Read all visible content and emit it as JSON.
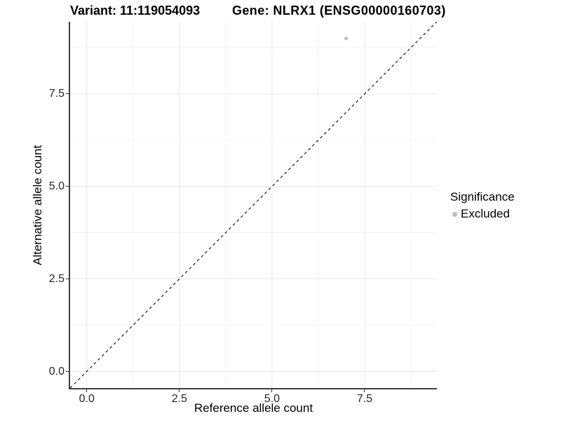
{
  "titles": {
    "left": "Variant: 11:119054093",
    "right": "Gene: NLRX1 (ENSG00000160703)"
  },
  "axes": {
    "x_label": "Reference allele count",
    "y_label": "Alternative allele count",
    "x_tick_labels": [
      "0.0",
      "2.5",
      "5.0",
      "7.5"
    ],
    "y_tick_labels": [
      "0.0",
      "2.5",
      "5.0",
      "7.5"
    ]
  },
  "legend": {
    "title": "Significance",
    "items": [
      {
        "label": "Excluded",
        "color": "#bebebe"
      }
    ]
  },
  "colors": {
    "background": "#ffffff",
    "grid_major": "#e8e8e8",
    "grid_minor": "#f3f3f3",
    "axis_line": "#404040",
    "tick_mark": "#333333",
    "point": "#bebebe",
    "reference_line": "#1a1a1a"
  },
  "chart_data": {
    "type": "scatter",
    "title_left": "Variant: 11:119054093",
    "title_right": "Gene: NLRX1 (ENSG00000160703)",
    "xlabel": "Reference allele count",
    "ylabel": "Alternative allele count",
    "xlim": [
      -0.45,
      9.45
    ],
    "ylim": [
      -0.45,
      9.45
    ],
    "x_major_ticks": [
      0,
      2.5,
      5,
      7.5
    ],
    "y_major_ticks": [
      0,
      2.5,
      5,
      7.5
    ],
    "x_minor_ticks": [
      1.25,
      3.75,
      6.25,
      8.75
    ],
    "y_minor_ticks": [
      1.25,
      3.75,
      6.25,
      8.75
    ],
    "x_tick_labels": [
      "0.0",
      "2.5",
      "5.0",
      "7.5"
    ],
    "y_tick_labels": [
      "0.0",
      "2.5",
      "5.0",
      "7.5"
    ],
    "grid": true,
    "legend_position": "right",
    "series": [
      {
        "name": "Excluded",
        "color": "#bebebe",
        "points": [
          [
            7,
            9
          ]
        ],
        "point_radius": 2.6
      }
    ],
    "reference_line": {
      "kind": "identity",
      "equation": "y = x",
      "style": "dashed",
      "color": "#1a1a1a"
    }
  }
}
